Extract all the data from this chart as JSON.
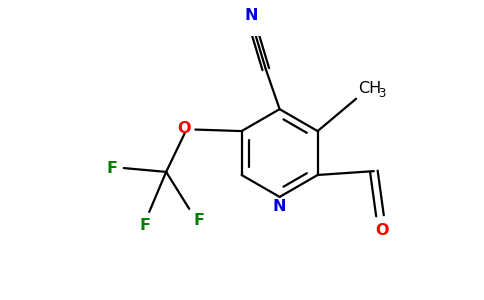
{
  "background_color": "#ffffff",
  "figure_size": [
    4.84,
    3.0
  ],
  "dpi": 100,
  "bond_color": "#000000",
  "bond_lw": 1.6,
  "colors": {
    "N": "#0000dd",
    "O": "#ff0000",
    "F": "#008000",
    "C": "#000000"
  },
  "font_size": 11.5,
  "font_size_sub": 8.5
}
